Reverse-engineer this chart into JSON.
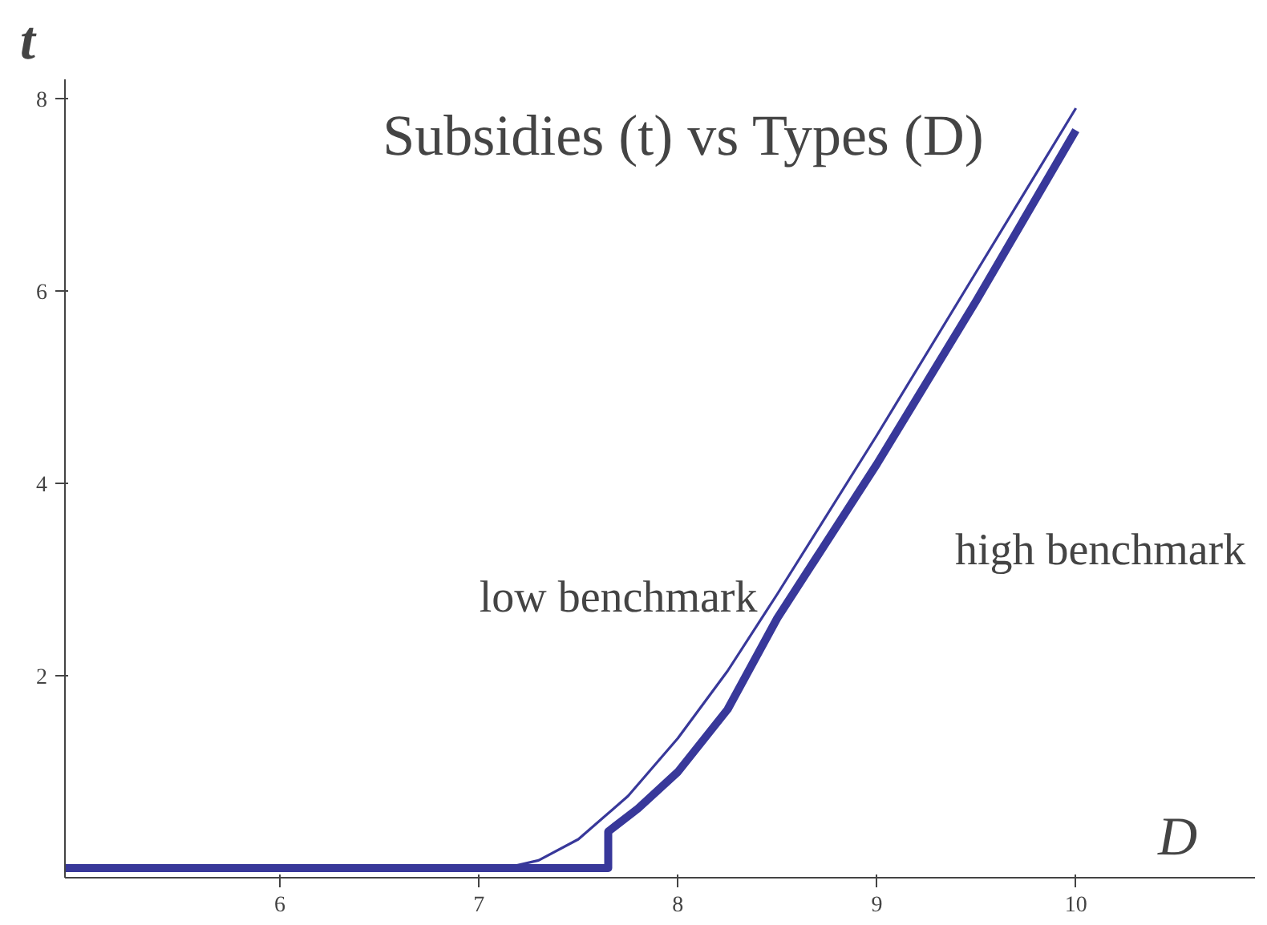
{
  "chart_data": {
    "type": "line",
    "title": "Subsidies (t) vs Types (D)",
    "xlabel": "D",
    "ylabel": "t",
    "series": [
      {
        "color": "#38389a",
        "x": [
          4.92,
          7.13,
          7.3,
          7.5,
          7.75,
          8.0,
          8.25,
          8.5,
          9.0,
          9.5,
          10.0
        ],
        "values": [
          0,
          0,
          0.08,
          0.3,
          0.75,
          1.35,
          2.05,
          2.85,
          4.5,
          6.2,
          7.9
        ]
      },
      {
        "color": "#38389a",
        "x": [
          4.92,
          7.65,
          7.65,
          7.8,
          8.0,
          8.25,
          8.5,
          9.0,
          9.5,
          10.0
        ],
        "values": [
          0,
          0,
          0.38,
          0.62,
          1.0,
          1.65,
          2.6,
          4.2,
          5.9,
          7.67
        ]
      }
    ],
    "annotations": [
      "low benchmark",
      "high benchmark"
    ],
    "xlim": [
      4.92,
      10.9
    ],
    "ylim": [
      -0.1,
      8.2
    ],
    "xticks": [
      6,
      7,
      8,
      9,
      10
    ],
    "yticks": [
      2,
      4,
      6,
      8
    ],
    "grid": false,
    "marker": "none",
    "line_style": "solid"
  }
}
